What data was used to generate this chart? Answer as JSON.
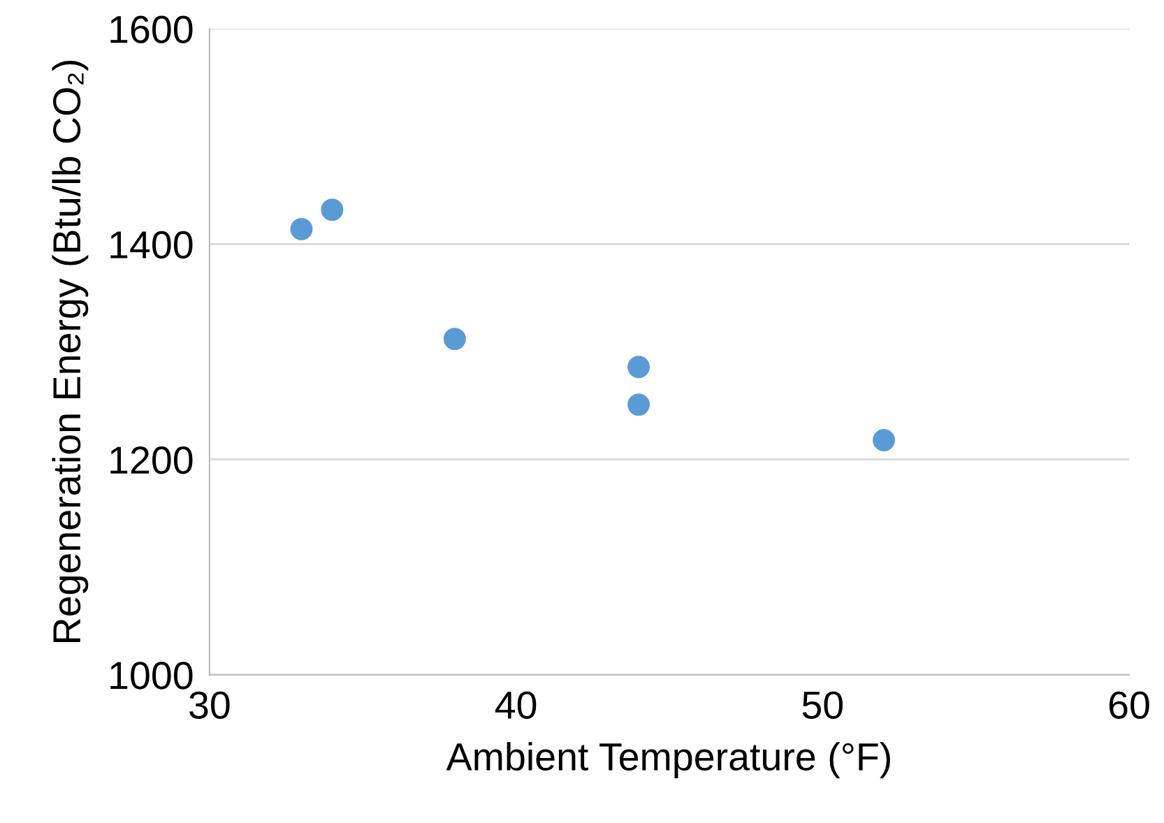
{
  "chart_data": {
    "type": "scatter",
    "xlabel": "Ambient Temperature (°F)",
    "ylabel": "Regeneration Energy (Btu/lb CO₂)",
    "x": [
      33,
      34,
      38,
      44,
      44,
      52
    ],
    "series": [
      {
        "color": "#5b9bd5",
        "values": [
          1414,
          1432,
          1312,
          1286,
          1251,
          1218
        ]
      }
    ],
    "xlim": [
      30,
      60
    ],
    "xticks": [
      30,
      40,
      50,
      60
    ],
    "ylim": [
      1000,
      1600
    ],
    "yticks": [
      1000,
      1200,
      1400,
      1600
    ],
    "grid": "y",
    "marker": "circle",
    "legend": false
  }
}
